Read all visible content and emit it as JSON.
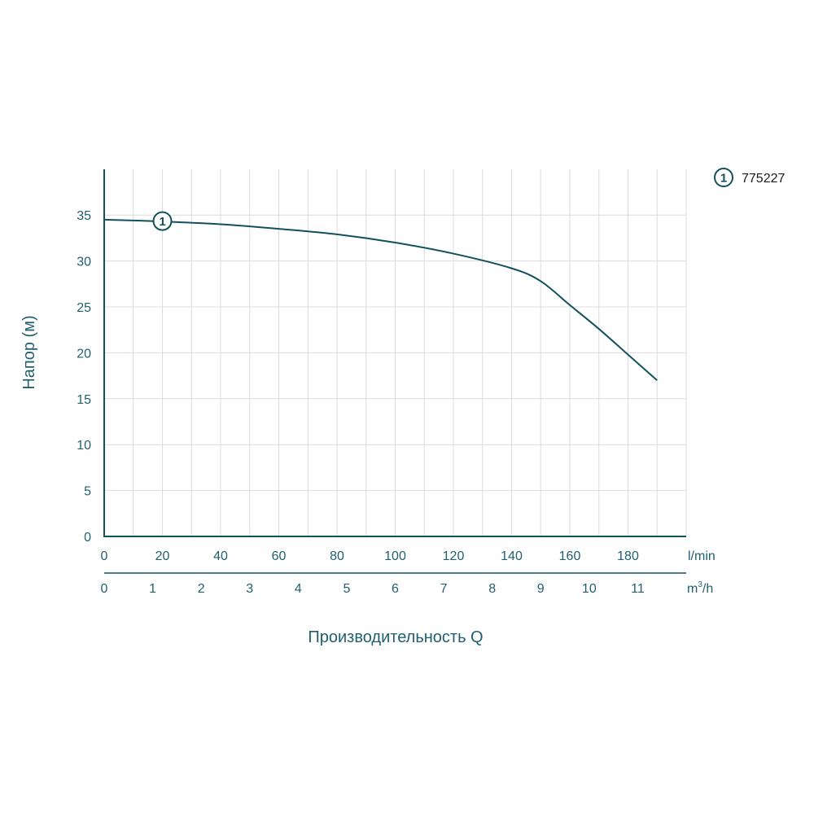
{
  "chart_data": {
    "type": "line",
    "title": "",
    "ylabel": "Напор (м)",
    "xlabel": "Производительность Q",
    "ylim": [
      0,
      40
    ],
    "yticks": [
      0,
      5,
      10,
      15,
      20,
      25,
      30,
      35
    ],
    "x_primary": {
      "unit": "l/min",
      "range": [
        0,
        200
      ],
      "ticks": [
        0,
        20,
        40,
        60,
        80,
        100,
        120,
        140,
        160,
        180
      ]
    },
    "x_secondary": {
      "unit_base": "m",
      "unit_sup": "3",
      "unit_tail": "/h",
      "range": [
        0,
        12
      ],
      "ticks": [
        0,
        1,
        2,
        3,
        4,
        5,
        6,
        7,
        8,
        9,
        10,
        11
      ]
    },
    "grid": true,
    "series": [
      {
        "name": "775227",
        "marker_label": "1",
        "color": "#14505c",
        "x": [
          0,
          20,
          40,
          60,
          80,
          100,
          120,
          140,
          150,
          160,
          170,
          180,
          190
        ],
        "y": [
          34.5,
          34.3,
          34.0,
          33.5,
          32.9,
          32.0,
          30.8,
          29.2,
          27.8,
          25.2,
          22.6,
          19.8,
          17.0
        ]
      }
    ],
    "legend": {
      "placement": "top-right",
      "marker": "1",
      "label": "775227"
    }
  }
}
